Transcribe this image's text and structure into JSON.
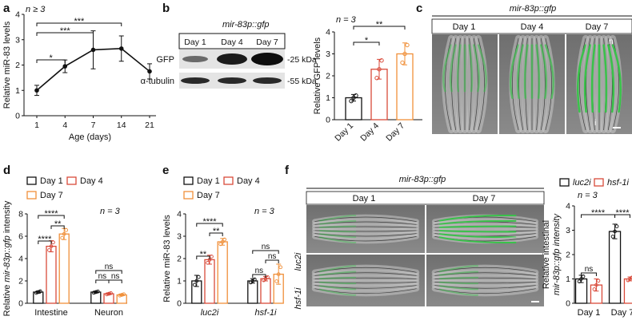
{
  "colors": {
    "black": "#111111",
    "red": "#d94a3a",
    "orange": "#f0903a",
    "gfp": "#39c24a"
  },
  "panels": {
    "a": {
      "letter": "a",
      "chart_data": {
        "type": "line",
        "n_label": "n ≥ 3",
        "ylabel": "Relative miR-83 levels",
        "xlabel": "Age (days)",
        "x": [
          "1",
          "4",
          "7",
          "14",
          "21"
        ],
        "values": [
          1.0,
          1.95,
          2.6,
          2.65,
          1.75
        ],
        "errors": [
          0.2,
          0.25,
          0.75,
          0.5,
          0.3
        ],
        "ylim": [
          0,
          4
        ],
        "yticks": [
          "0",
          "1",
          "2",
          "3",
          "4"
        ],
        "significance": [
          {
            "from": 0,
            "to": 1,
            "label": "*"
          },
          {
            "from": 0,
            "to": 2,
            "label": "***"
          },
          {
            "from": 0,
            "to": 3,
            "label": "***"
          }
        ]
      }
    },
    "b": {
      "letter": "b",
      "blot": {
        "title": "mir-83p::gfp",
        "lanes": [
          "Day 1",
          "Day 4",
          "Day 7"
        ],
        "rows": [
          "GFP",
          "α-tubulin"
        ],
        "sizes": [
          "-25 kDa",
          "-55 kDa"
        ]
      },
      "chart_data": {
        "type": "bar",
        "n_label": "n = 3",
        "ylabel": "Relative GFP levels",
        "categories": [
          "Day 1",
          "Day 4",
          "Day 7"
        ],
        "values": [
          1.0,
          2.3,
          3.0
        ],
        "errors": [
          0.15,
          0.45,
          0.5
        ],
        "points": [
          [
            0.85,
            1.0,
            1.1
          ],
          [
            1.9,
            2.3,
            2.7
          ],
          [
            2.6,
            3.0,
            3.4
          ]
        ],
        "ylim": [
          0,
          4
        ],
        "yticks": [
          "0",
          "1",
          "2",
          "3",
          "4"
        ],
        "significance": [
          {
            "from": 0,
            "to": 1,
            "label": "*"
          },
          {
            "from": 0,
            "to": 2,
            "label": "**"
          }
        ]
      }
    },
    "c": {
      "letter": "c",
      "title": "mir-83p::gfp",
      "days": [
        "Day 1",
        "Day 4",
        "Day 7"
      ],
      "annot_n": "n",
      "annot_i": "i"
    },
    "d": {
      "letter": "d",
      "legend": [
        "Day 1",
        "Day 4",
        "Day 7"
      ],
      "chart_data": {
        "type": "bar",
        "n_label": "n = 3",
        "ylabel_pre": "Relative ",
        "ylabel_it": "mir-83p::gfp",
        "ylabel_post": " intensity",
        "categories": [
          "Intestine",
          "Neuron"
        ],
        "series": [
          {
            "name": "Day 1",
            "values": [
              1.0,
              1.0
            ],
            "errors": [
              0.1,
              0.08
            ]
          },
          {
            "name": "Day 4",
            "values": [
              5.1,
              0.85
            ],
            "errors": [
              0.5,
              0.08
            ]
          },
          {
            "name": "Day 7",
            "values": [
              6.2,
              0.75
            ],
            "errors": [
              0.5,
              0.08
            ]
          }
        ],
        "ylim": [
          0,
          8
        ],
        "yticks": [
          "0",
          "2",
          "4",
          "6",
          "8"
        ],
        "significance": [
          {
            "group": 0,
            "from": 0,
            "to": 1,
            "label": "****"
          },
          {
            "group": 0,
            "from": 1,
            "to": 2,
            "label": "**"
          },
          {
            "group": 0,
            "from": 0,
            "to": 2,
            "label": "****"
          },
          {
            "group": 1,
            "from": 0,
            "to": 1,
            "label": "ns"
          },
          {
            "group": 1,
            "from": 1,
            "to": 2,
            "label": "ns"
          },
          {
            "group": 1,
            "from": 0,
            "to": 2,
            "label": "ns"
          }
        ]
      }
    },
    "e": {
      "letter": "e",
      "legend": [
        "Day 1",
        "Day 4",
        "Day 7"
      ],
      "chart_data": {
        "type": "bar",
        "n_label": "n = 3",
        "ylabel": "Relative miR-83 levels",
        "categories": [
          "luc2i",
          "hsf-1i"
        ],
        "series": [
          {
            "name": "Day 1",
            "values": [
              1.0,
              1.0
            ],
            "errors": [
              0.25,
              0.1
            ]
          },
          {
            "name": "Day 4",
            "values": [
              1.95,
              1.1
            ],
            "errors": [
              0.2,
              0.1
            ]
          },
          {
            "name": "Day 7",
            "values": [
              2.75,
              1.3
            ],
            "errors": [
              0.15,
              0.45
            ]
          }
        ],
        "ylim": [
          0,
          4
        ],
        "yticks": [
          "0",
          "1",
          "2",
          "3",
          "4"
        ],
        "significance": [
          {
            "group": 0,
            "from": 0,
            "to": 1,
            "label": "**"
          },
          {
            "group": 0,
            "from": 1,
            "to": 2,
            "label": "**"
          },
          {
            "group": 0,
            "from": 0,
            "to": 2,
            "label": "****"
          },
          {
            "group": 1,
            "from": 0,
            "to": 1,
            "label": "ns"
          },
          {
            "group": 1,
            "from": 1,
            "to": 2,
            "label": "ns"
          },
          {
            "group": 1,
            "from": 0,
            "to": 2,
            "label": "ns"
          }
        ]
      }
    },
    "f": {
      "letter": "f",
      "title": "mir-83p::gfp",
      "days": [
        "Day 1",
        "Day 7"
      ],
      "rows": [
        "luc2i",
        "hsf-1i"
      ],
      "legend": [
        "luc2i",
        "hsf-1i"
      ],
      "chart_data": {
        "type": "bar",
        "n_label": "n = 3",
        "ylabel_line1": "Relative intestinal",
        "ylabel_line2": "mir-83p::gfp intensity",
        "categories": [
          "Day 1",
          "Day 7"
        ],
        "series": [
          {
            "name": "luc2i",
            "values": [
              1.0,
              2.95
            ],
            "errors": [
              0.15,
              0.3
            ]
          },
          {
            "name": "hsf-1i",
            "values": [
              0.75,
              1.0
            ],
            "errors": [
              0.25,
              0.08
            ]
          }
        ],
        "ylim": [
          0,
          4
        ],
        "yticks": [
          "0",
          "1",
          "2",
          "3",
          "4"
        ],
        "significance": [
          {
            "type": "pair",
            "group": 0,
            "label": "ns"
          },
          {
            "type": "span",
            "label": "****"
          },
          {
            "type": "pair",
            "group": 1,
            "label": "****"
          }
        ]
      }
    }
  }
}
